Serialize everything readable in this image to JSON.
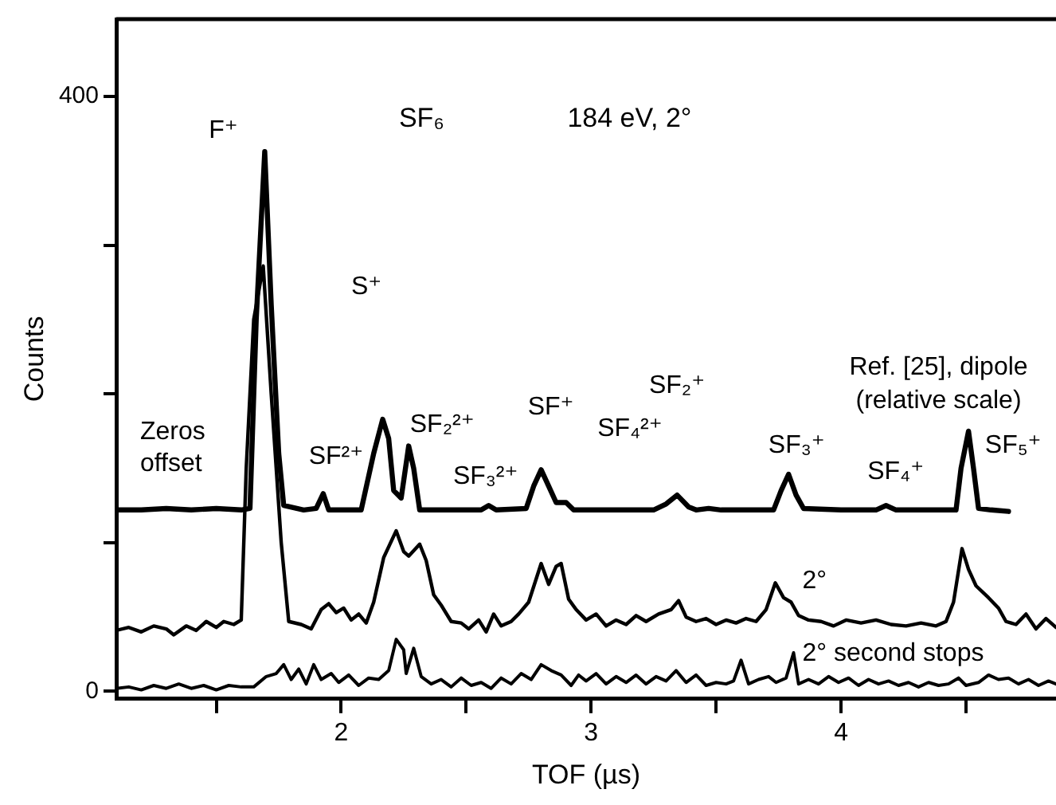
{
  "chart_data": {
    "type": "line",
    "title": "SF₆",
    "subtitle": "184 eV, 2°",
    "xlabel": "TOF (µs)",
    "ylabel": "Counts",
    "xlim": [
      1.1,
      4.86
    ],
    "xticks": [
      {
        "value": 1.5,
        "label": null
      },
      2,
      {
        "value": 2.5,
        "label": null
      },
      3,
      {
        "value": 3.5,
        "label": null
      },
      4,
      {
        "value": 4.5,
        "label": null
      }
    ],
    "ylim": [
      -5,
      452
    ],
    "yticks": [
      0,
      {
        "value": 100,
        "label": null
      },
      {
        "value": 200,
        "label": null
      },
      {
        "value": 300,
        "label": null
      },
      400
    ],
    "grid": false,
    "legend": false,
    "marker": "none",
    "line_style": "solid",
    "series": [
      {
        "name": "Ref. [25], dipole (relative scale)",
        "color": "#000000",
        "x": [
          1.1,
          1.2,
          1.3,
          1.4,
          1.5,
          1.6,
          1.635,
          1.66,
          1.694,
          1.72,
          1.75,
          1.77,
          1.85,
          1.9,
          1.928,
          1.95,
          2.08,
          2.13,
          2.166,
          2.19,
          2.21,
          2.24,
          2.27,
          2.29,
          2.314,
          2.5,
          2.56,
          2.59,
          2.62,
          2.74,
          2.77,
          2.8,
          2.83,
          2.86,
          2.9,
          2.93,
          3.25,
          3.3,
          3.344,
          3.39,
          3.42,
          3.47,
          3.52,
          3.73,
          3.76,
          3.79,
          3.82,
          3.85,
          4.0,
          4.14,
          4.18,
          4.22,
          4.46,
          4.48,
          4.51,
          4.53,
          4.55,
          4.6,
          4.67
        ],
        "values": [
          122,
          122,
          123,
          122,
          123,
          122,
          123,
          250,
          363,
          260,
          160,
          125,
          122,
          123,
          133,
          122,
          122,
          160,
          183,
          170,
          135,
          130,
          165,
          150,
          122,
          122,
          122,
          125,
          122,
          123,
          138,
          149,
          138,
          127,
          127,
          122,
          122,
          126,
          132,
          124,
          122,
          123,
          122,
          122,
          135,
          146,
          132,
          123,
          122,
          122,
          125,
          122,
          122,
          150,
          175,
          150,
          123,
          122,
          121
        ]
      },
      {
        "name": "2°",
        "color": "#000000",
        "x": [
          1.1,
          1.15,
          1.2,
          1.25,
          1.3,
          1.33,
          1.38,
          1.42,
          1.46,
          1.5,
          1.53,
          1.57,
          1.6,
          1.62,
          1.65,
          1.688,
          1.72,
          1.76,
          1.79,
          1.84,
          1.88,
          1.92,
          1.95,
          1.98,
          2.01,
          2.04,
          2.07,
          2.1,
          2.13,
          2.17,
          2.22,
          2.25,
          2.27,
          2.314,
          2.34,
          2.37,
          2.4,
          2.44,
          2.48,
          2.51,
          2.55,
          2.58,
          2.61,
          2.64,
          2.68,
          2.71,
          2.75,
          2.8,
          2.83,
          2.86,
          2.88,
          2.91,
          2.94,
          2.98,
          3.02,
          3.06,
          3.1,
          3.14,
          3.18,
          3.22,
          3.27,
          3.32,
          3.35,
          3.38,
          3.42,
          3.46,
          3.5,
          3.54,
          3.58,
          3.62,
          3.66,
          3.7,
          3.737,
          3.77,
          3.8,
          3.83,
          3.87,
          3.92,
          3.97,
          4.02,
          4.08,
          4.14,
          4.2,
          4.26,
          4.32,
          4.38,
          4.42,
          4.45,
          4.484,
          4.51,
          4.54,
          4.59,
          4.63,
          4.66,
          4.7,
          4.74,
          4.78,
          4.82,
          4.86
        ],
        "values": [
          41,
          43,
          40,
          44,
          42,
          38,
          44,
          41,
          47,
          43,
          47,
          45,
          48,
          150,
          250,
          286,
          200,
          100,
          47,
          45,
          42,
          55,
          59,
          53,
          56,
          48,
          52,
          46,
          60,
          90,
          108,
          94,
          91,
          99,
          88,
          65,
          58,
          47,
          46,
          42,
          48,
          40,
          52,
          44,
          47,
          52,
          60,
          86,
          72,
          84,
          86,
          62,
          55,
          48,
          52,
          44,
          48,
          45,
          51,
          47,
          52,
          55,
          61,
          50,
          47,
          49,
          45,
          48,
          46,
          49,
          47,
          55,
          73,
          63,
          60,
          51,
          48,
          47,
          44,
          48,
          46,
          48,
          45,
          44,
          46,
          44,
          47,
          60,
          96,
          82,
          71,
          63,
          56,
          47,
          45,
          52,
          42,
          49,
          43
        ]
      },
      {
        "name": "2° second stops",
        "color": "#000000",
        "x": [
          1.1,
          1.15,
          1.2,
          1.25,
          1.3,
          1.35,
          1.4,
          1.45,
          1.5,
          1.55,
          1.6,
          1.65,
          1.7,
          1.74,
          1.77,
          1.8,
          1.83,
          1.86,
          1.89,
          1.92,
          1.96,
          1.99,
          2.03,
          2.07,
          2.11,
          2.15,
          2.19,
          2.22,
          2.25,
          2.26,
          2.29,
          2.32,
          2.36,
          2.4,
          2.44,
          2.48,
          2.52,
          2.56,
          2.6,
          2.64,
          2.68,
          2.72,
          2.76,
          2.8,
          2.84,
          2.88,
          2.92,
          2.95,
          2.98,
          3.02,
          3.06,
          3.1,
          3.14,
          3.18,
          3.22,
          3.26,
          3.3,
          3.34,
          3.38,
          3.42,
          3.46,
          3.5,
          3.54,
          3.57,
          3.6,
          3.63,
          3.67,
          3.71,
          3.74,
          3.78,
          3.81,
          3.83,
          3.87,
          3.91,
          3.95,
          3.99,
          4.03,
          4.07,
          4.11,
          4.15,
          4.19,
          4.23,
          4.27,
          4.31,
          4.35,
          4.39,
          4.43,
          4.47,
          4.5,
          4.55,
          4.59,
          4.63,
          4.67,
          4.71,
          4.75,
          4.79,
          4.83,
          4.86
        ],
        "values": [
          2,
          3,
          1,
          4,
          2,
          5,
          2,
          4,
          1,
          4,
          3,
          3,
          10,
          12,
          18,
          8,
          15,
          5,
          18,
          8,
          12,
          6,
          11,
          4,
          9,
          8,
          14,
          35,
          28,
          12,
          29,
          10,
          5,
          8,
          3,
          9,
          4,
          6,
          2,
          9,
          5,
          12,
          8,
          18,
          14,
          11,
          4,
          11,
          7,
          12,
          5,
          10,
          6,
          11,
          5,
          10,
          7,
          14,
          6,
          11,
          4,
          6,
          5,
          7,
          21,
          5,
          8,
          10,
          6,
          9,
          26,
          5,
          8,
          5,
          10,
          6,
          9,
          4,
          8,
          5,
          7,
          4,
          6,
          3,
          6,
          4,
          5,
          9,
          4,
          6,
          11,
          8,
          9,
          5,
          8,
          4,
          7,
          5
        ]
      }
    ],
    "annotations": [
      "Zeros offset",
      {
        "text": "F⁺",
        "x": 1.694,
        "y": 363
      },
      {
        "text": "SF²⁺",
        "x": 1.928,
        "y": 133
      },
      "S⁺",
      {
        "text": "SF₂²⁺",
        "x": 2.27,
        "y": 165
      },
      {
        "text": "SF₃²⁺",
        "x": 2.59,
        "y": 125
      },
      {
        "text": "SF⁺",
        "x": 2.8,
        "y": 149
      },
      {
        "text": "SF₄²⁺",
        "x": 2.9,
        "y": 127
      },
      "SF₂⁺",
      {
        "text": "SF₃⁺",
        "x": 3.79,
        "y": 146
      },
      {
        "text": "SF₄⁺",
        "x": 4.18,
        "y": 125
      },
      {
        "text": "SF₅⁺",
        "x": 4.51,
        "y": 175
      }
    ]
  }
}
